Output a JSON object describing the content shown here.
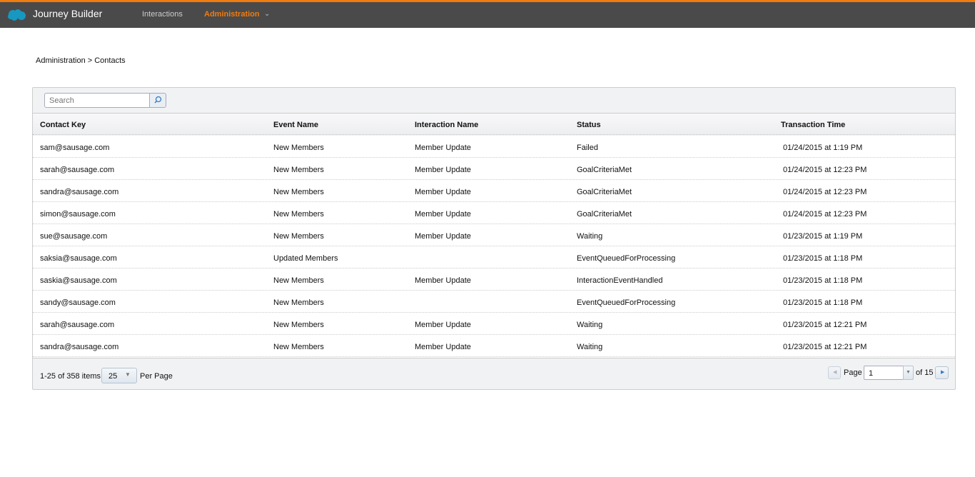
{
  "header": {
    "app_title": "Journey Builder",
    "nav": [
      {
        "label": "Interactions"
      },
      {
        "label": "Administration",
        "active": true
      }
    ],
    "accent": "#f07b0f"
  },
  "breadcrumb": "Administration > Contacts",
  "search": {
    "placeholder": "Search",
    "value": ""
  },
  "table": {
    "columns": [
      "Contact Key",
      "Event Name",
      "Interaction Name",
      "Status",
      "Transaction Time"
    ],
    "rows": [
      [
        "sam@sausage.com",
        "New Members",
        "Member Update",
        "Failed",
        "01/24/2015 at 1:19 PM"
      ],
      [
        "sarah@sausage.com",
        "New Members",
        "Member Update",
        "GoalCriteriaMet",
        "01/24/2015 at 12:23 PM"
      ],
      [
        "sandra@sausage.com",
        "New Members",
        "Member Update",
        "GoalCriteriaMet",
        "01/24/2015 at 12:23 PM"
      ],
      [
        "simon@sausage.com",
        "New Members",
        "Member Update",
        "GoalCriteriaMet",
        "01/24/2015 at 12:23 PM"
      ],
      [
        "sue@sausage.com",
        "New Members",
        "Member Update",
        "Waiting",
        "01/23/2015 at 1:19 PM"
      ],
      [
        "saksia@sausage.com",
        "Updated Members",
        "",
        "EventQueuedForProcessing",
        "01/23/2015 at 1:18 PM"
      ],
      [
        "saskia@sausage.com",
        "New Members",
        "Member Update",
        "InteractionEventHandled",
        "01/23/2015 at 1:18 PM"
      ],
      [
        "sandy@sausage.com",
        "New Members",
        "",
        "EventQueuedForProcessing",
        "01/23/2015 at 1:18 PM"
      ],
      [
        "sarah@sausage.com",
        "New Members",
        "Member Update",
        "Waiting",
        "01/23/2015 at 12:21 PM"
      ],
      [
        "sandra@sausage.com",
        "New Members",
        "Member Update",
        "Waiting",
        "01/23/2015 at 12:21 PM"
      ]
    ]
  },
  "footer": {
    "items_label": "1-25 of 358 items",
    "per_page_value": "25",
    "per_page_label": "Per Page",
    "page_label": "Page",
    "page_value": "1",
    "of_label": "of 15"
  }
}
